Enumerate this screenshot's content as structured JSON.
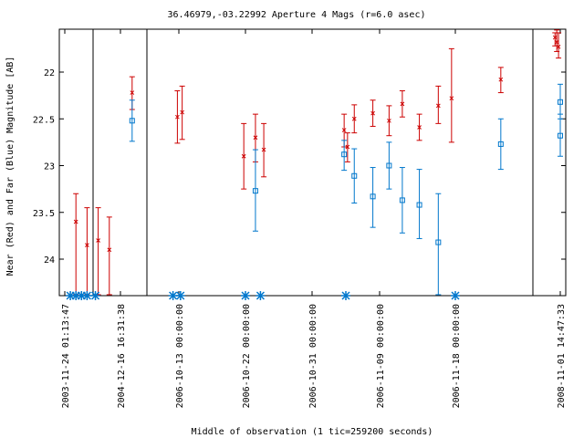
{
  "chart_data": {
    "type": "scatter",
    "title": "36.46979,-03.22992   Aperture 4 Mags (r=6.0 asec)",
    "xlabel": "Middle of observation (1 tic=259200 seconds)",
    "ylabel": "Near (Red) and Far (Blue) Magnitude [AB]",
    "x_tick_labels": [
      "2003-11-24 01:13:47",
      "2004-12-16 16:31:38",
      "2006-10-13 00:00:00",
      "2006-10-22 00:00:00",
      "2006-10-31 00:00:00",
      "2006-11-09 00:00:00",
      "2006-11-18 00:00:00",
      "2008-11-01 14:47:33"
    ],
    "y_ticks": [
      22,
      22.5,
      23,
      23.5,
      24
    ],
    "y_tick_labels": [
      "22",
      "22.5",
      "23",
      "23.5",
      "24"
    ],
    "ylim": [
      24.38,
      21.55
    ],
    "y_inverted": true,
    "x_scale": "broken-time-axis",
    "series": [
      {
        "name": "Near",
        "color": "#cc0000",
        "marker": "x",
        "points": [
          {
            "x": 0.2,
            "y": 23.6,
            "lo": 23.3,
            "hi": 24.38
          },
          {
            "x": 0.4,
            "y": 23.85,
            "lo": 23.45,
            "hi": 24.38
          },
          {
            "x": 0.6,
            "y": 23.8,
            "lo": 23.45,
            "hi": 24.38
          },
          {
            "x": 0.8,
            "y": 23.9,
            "lo": 23.55,
            "hi": 24.38
          },
          {
            "x": 1.4,
            "y": 22.22,
            "lo": 22.05,
            "hi": 22.4
          },
          {
            "x": 2.95,
            "y": 22.48,
            "lo": 22.2,
            "hi": 22.76
          },
          {
            "x": 3.1,
            "y": 22.43,
            "lo": 22.15,
            "hi": 22.72
          },
          {
            "x": 4.95,
            "y": 22.9,
            "lo": 22.55,
            "hi": 23.25
          },
          {
            "x": 5.3,
            "y": 22.7,
            "lo": 22.45,
            "hi": 22.96
          },
          {
            "x": 5.55,
            "y": 22.83,
            "lo": 22.55,
            "hi": 23.12
          },
          {
            "x": 7.95,
            "y": 22.62,
            "lo": 22.45,
            "hi": 22.8
          },
          {
            "x": 8.05,
            "y": 22.8,
            "lo": 22.65,
            "hi": 22.96
          },
          {
            "x": 8.25,
            "y": 22.5,
            "lo": 22.35,
            "hi": 22.65
          },
          {
            "x": 8.8,
            "y": 22.44,
            "lo": 22.3,
            "hi": 22.58
          },
          {
            "x": 9.25,
            "y": 22.52,
            "lo": 22.36,
            "hi": 22.68
          },
          {
            "x": 9.6,
            "y": 22.34,
            "lo": 22.2,
            "hi": 22.48
          },
          {
            "x": 10.05,
            "y": 22.59,
            "lo": 22.45,
            "hi": 22.73
          },
          {
            "x": 10.55,
            "y": 22.36,
            "lo": 22.15,
            "hi": 22.55
          },
          {
            "x": 10.9,
            "y": 22.28,
            "lo": 21.75,
            "hi": 22.75
          },
          {
            "x": 12.3,
            "y": 22.08,
            "lo": 21.95,
            "hi": 22.22
          },
          {
            "x": 13.85,
            "y": 21.63,
            "lo": 21.58,
            "hi": 21.72
          },
          {
            "x": 13.9,
            "y": 21.68,
            "lo": 21.55,
            "hi": 21.78
          },
          {
            "x": 13.95,
            "y": 21.73,
            "lo": 21.58,
            "hi": 21.85
          }
        ]
      },
      {
        "name": "Far",
        "color": "#0077cc",
        "marker": "square",
        "points": [
          {
            "x": 1.4,
            "y": 22.52,
            "lo": 22.3,
            "hi": 22.74
          },
          {
            "x": 5.3,
            "y": 23.27,
            "lo": 22.83,
            "hi": 23.7
          },
          {
            "x": 7.95,
            "y": 22.88,
            "lo": 22.73,
            "hi": 23.05
          },
          {
            "x": 8.25,
            "y": 23.11,
            "lo": 22.82,
            "hi": 23.4
          },
          {
            "x": 8.8,
            "y": 23.33,
            "lo": 23.02,
            "hi": 23.66
          },
          {
            "x": 9.25,
            "y": 23.0,
            "lo": 22.75,
            "hi": 23.25
          },
          {
            "x": 9.6,
            "y": 23.37,
            "lo": 23.02,
            "hi": 23.72
          },
          {
            "x": 10.05,
            "y": 23.42,
            "lo": 23.04,
            "hi": 23.78
          },
          {
            "x": 10.55,
            "y": 23.82,
            "lo": 23.3,
            "hi": 24.38
          },
          {
            "x": 12.3,
            "y": 22.77,
            "lo": 22.5,
            "hi": 23.04
          },
          {
            "x": 14.0,
            "y": 22.32,
            "lo": 22.13,
            "hi": 22.5
          },
          {
            "x": 14.0,
            "y": 22.68,
            "lo": 22.45,
            "hi": 22.9
          }
        ]
      }
    ],
    "upper_limits": {
      "color": "#0077cc",
      "marker": "asterisk",
      "x": [
        0.1,
        0.2,
        0.3,
        0.4,
        0.55,
        2.8,
        3.05,
        5.0,
        5.45,
        8.0,
        11.0
      ]
    }
  }
}
